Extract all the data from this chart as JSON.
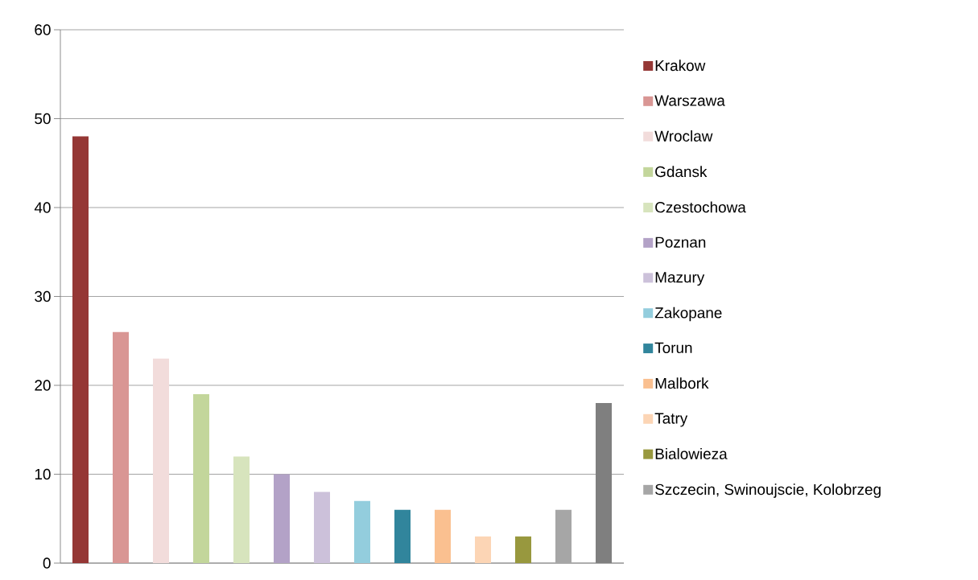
{
  "chart_data": {
    "type": "bar",
    "categories": [
      null,
      null,
      null,
      null,
      null,
      null,
      null,
      null,
      null,
      null,
      null,
      null,
      null,
      null
    ],
    "series": [
      {
        "name": "Krakow",
        "color": "#953735",
        "values": [
          48,
          null,
          null,
          null,
          null,
          null,
          null,
          null,
          null,
          null,
          null,
          null,
          null,
          null
        ]
      },
      {
        "name": "Warszawa",
        "color": "#d99694",
        "values": [
          null,
          26,
          null,
          null,
          null,
          null,
          null,
          null,
          null,
          null,
          null,
          null,
          null,
          null
        ]
      },
      {
        "name": "Wroclaw",
        "color": "#f2dcdb",
        "values": [
          null,
          null,
          23,
          null,
          null,
          null,
          null,
          null,
          null,
          null,
          null,
          null,
          null,
          null
        ]
      },
      {
        "name": "Gdansk",
        "color": "#c3d69b",
        "values": [
          null,
          null,
          null,
          19,
          null,
          null,
          null,
          null,
          null,
          null,
          null,
          null,
          null,
          null
        ]
      },
      {
        "name": "Czestochowa",
        "color": "#d7e4bd",
        "values": [
          null,
          null,
          null,
          null,
          12,
          null,
          null,
          null,
          null,
          null,
          null,
          null,
          null,
          null
        ]
      },
      {
        "name": "Poznan",
        "color": "#b3a2c7",
        "values": [
          null,
          null,
          null,
          null,
          null,
          10,
          null,
          null,
          null,
          null,
          null,
          null,
          null,
          null
        ]
      },
      {
        "name": "Mazury",
        "color": "#ccc1da",
        "values": [
          null,
          null,
          null,
          null,
          null,
          null,
          8,
          null,
          null,
          null,
          null,
          null,
          null,
          null
        ]
      },
      {
        "name": "Zakopane",
        "color": "#93cddd",
        "values": [
          null,
          null,
          null,
          null,
          null,
          null,
          null,
          7,
          null,
          null,
          null,
          null,
          null,
          null
        ]
      },
      {
        "name": "Torun",
        "color": "#31859c",
        "values": [
          null,
          null,
          null,
          null,
          null,
          null,
          null,
          null,
          6,
          null,
          null,
          null,
          null,
          null
        ]
      },
      {
        "name": "Malbork",
        "color": "#fac090",
        "values": [
          null,
          null,
          null,
          null,
          null,
          null,
          null,
          null,
          null,
          6,
          null,
          null,
          null,
          null
        ]
      },
      {
        "name": "Tatry",
        "color": "#fcd5b5",
        "values": [
          null,
          null,
          null,
          null,
          null,
          null,
          null,
          null,
          null,
          null,
          3,
          null,
          null,
          null
        ]
      },
      {
        "name": "Bialowieza",
        "color": "#98983e",
        "values": [
          null,
          null,
          null,
          null,
          null,
          null,
          null,
          null,
          null,
          null,
          null,
          3,
          null,
          null
        ]
      },
      {
        "name": "Szczecin, Swinoujscie, Kolobrzeg",
        "color": "#a6a6a6",
        "values": [
          null,
          null,
          null,
          null,
          null,
          null,
          null,
          null,
          null,
          null,
          null,
          null,
          6,
          null
        ]
      },
      {
        "color": "#7f7f7f",
        "values": [
          null,
          null,
          null,
          null,
          null,
          null,
          null,
          null,
          null,
          null,
          null,
          null,
          null,
          18
        ]
      }
    ],
    "ylim": [
      0,
      60
    ],
    "yticks": [
      0,
      10,
      20,
      30,
      40,
      50,
      60
    ],
    "grid": "y",
    "legend": "right"
  }
}
